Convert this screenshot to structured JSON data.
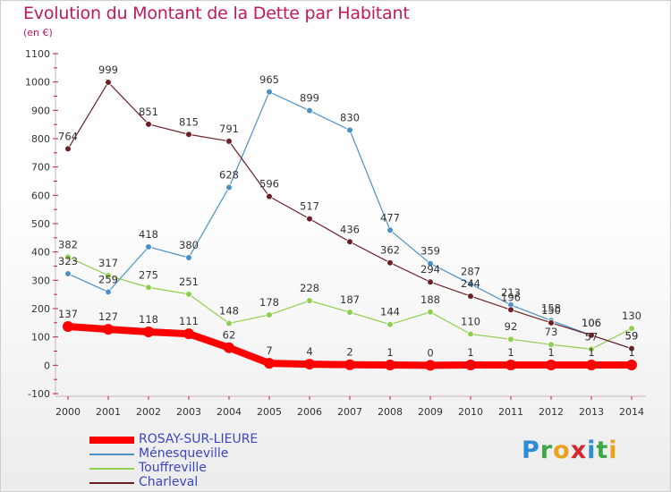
{
  "header": {
    "title": "Evolution du Montant de la Dette par Habitant",
    "subtitle": "(en €)"
  },
  "colors": {
    "title": "#c2185b",
    "legend_text": "#3a46c7"
  },
  "logo": {
    "letters": [
      "P",
      "r",
      "o",
      "x",
      "i",
      "t",
      "i"
    ],
    "colors": [
      "#2e8bd6",
      "#3fa64a",
      "#e8a21c",
      "#d6262c",
      "#2e8bd6",
      "#3fa64a",
      "#e8a21c"
    ]
  },
  "chart_data": {
    "type": "line",
    "title": "Evolution du Montant de la Dette par Habitant",
    "subtitle": "(en €)",
    "x": [
      "2000",
      "2001",
      "2002",
      "2003",
      "2004",
      "2005",
      "2006",
      "2007",
      "2008",
      "2009",
      "2010",
      "2011",
      "2012",
      "2013",
      "2014"
    ],
    "ylim": [
      -100,
      1100
    ],
    "yticks": [
      -100,
      0,
      100,
      200,
      300,
      400,
      500,
      600,
      700,
      800,
      900,
      1000,
      1100
    ],
    "grid": false,
    "legend_position": "bottom-left",
    "series": [
      {
        "name": "ROSAY-SUR-LIEURE",
        "color": "#ff0000",
        "values": [
          137,
          127,
          118,
          111,
          62,
          7,
          4,
          2,
          1,
          0,
          1,
          1,
          1,
          1,
          1
        ],
        "labels": [
          "137",
          "127",
          "118",
          "111",
          "62",
          "7",
          "4",
          "2",
          "1",
          "0",
          "1",
          "1",
          "1",
          "1",
          "1"
        ]
      },
      {
        "name": "Ménesqueville",
        "color": "#4a90c8",
        "values": [
          323,
          259,
          418,
          380,
          628,
          965,
          899,
          830,
          477,
          359,
          287,
          213,
          158,
          106,
          59
        ],
        "labels": [
          "323",
          "259",
          "418",
          "380",
          "628",
          "965",
          "899",
          "830",
          "477",
          "359",
          "287",
          "213",
          "158",
          "106",
          "59"
        ]
      },
      {
        "name": "Touffreville",
        "color": "#8fce4f",
        "values": [
          382,
          317,
          275,
          251,
          148,
          178,
          228,
          187,
          144,
          188,
          110,
          92,
          73,
          57,
          130
        ],
        "labels": [
          "382",
          "317",
          "275",
          "251",
          "148",
          "178",
          "228",
          "187",
          "144",
          "188",
          "110",
          "92",
          "73",
          "57",
          "130"
        ]
      },
      {
        "name": "Charleval",
        "color": "#6b1f24",
        "values": [
          764,
          999,
          851,
          815,
          791,
          596,
          517,
          436,
          362,
          294,
          244,
          196,
          150,
          106,
          59
        ],
        "labels": [
          "764",
          "999",
          "851",
          "815",
          "791",
          "596",
          "517",
          "436",
          "362",
          "294",
          "244",
          "196",
          "150",
          "106",
          "59"
        ]
      }
    ]
  }
}
